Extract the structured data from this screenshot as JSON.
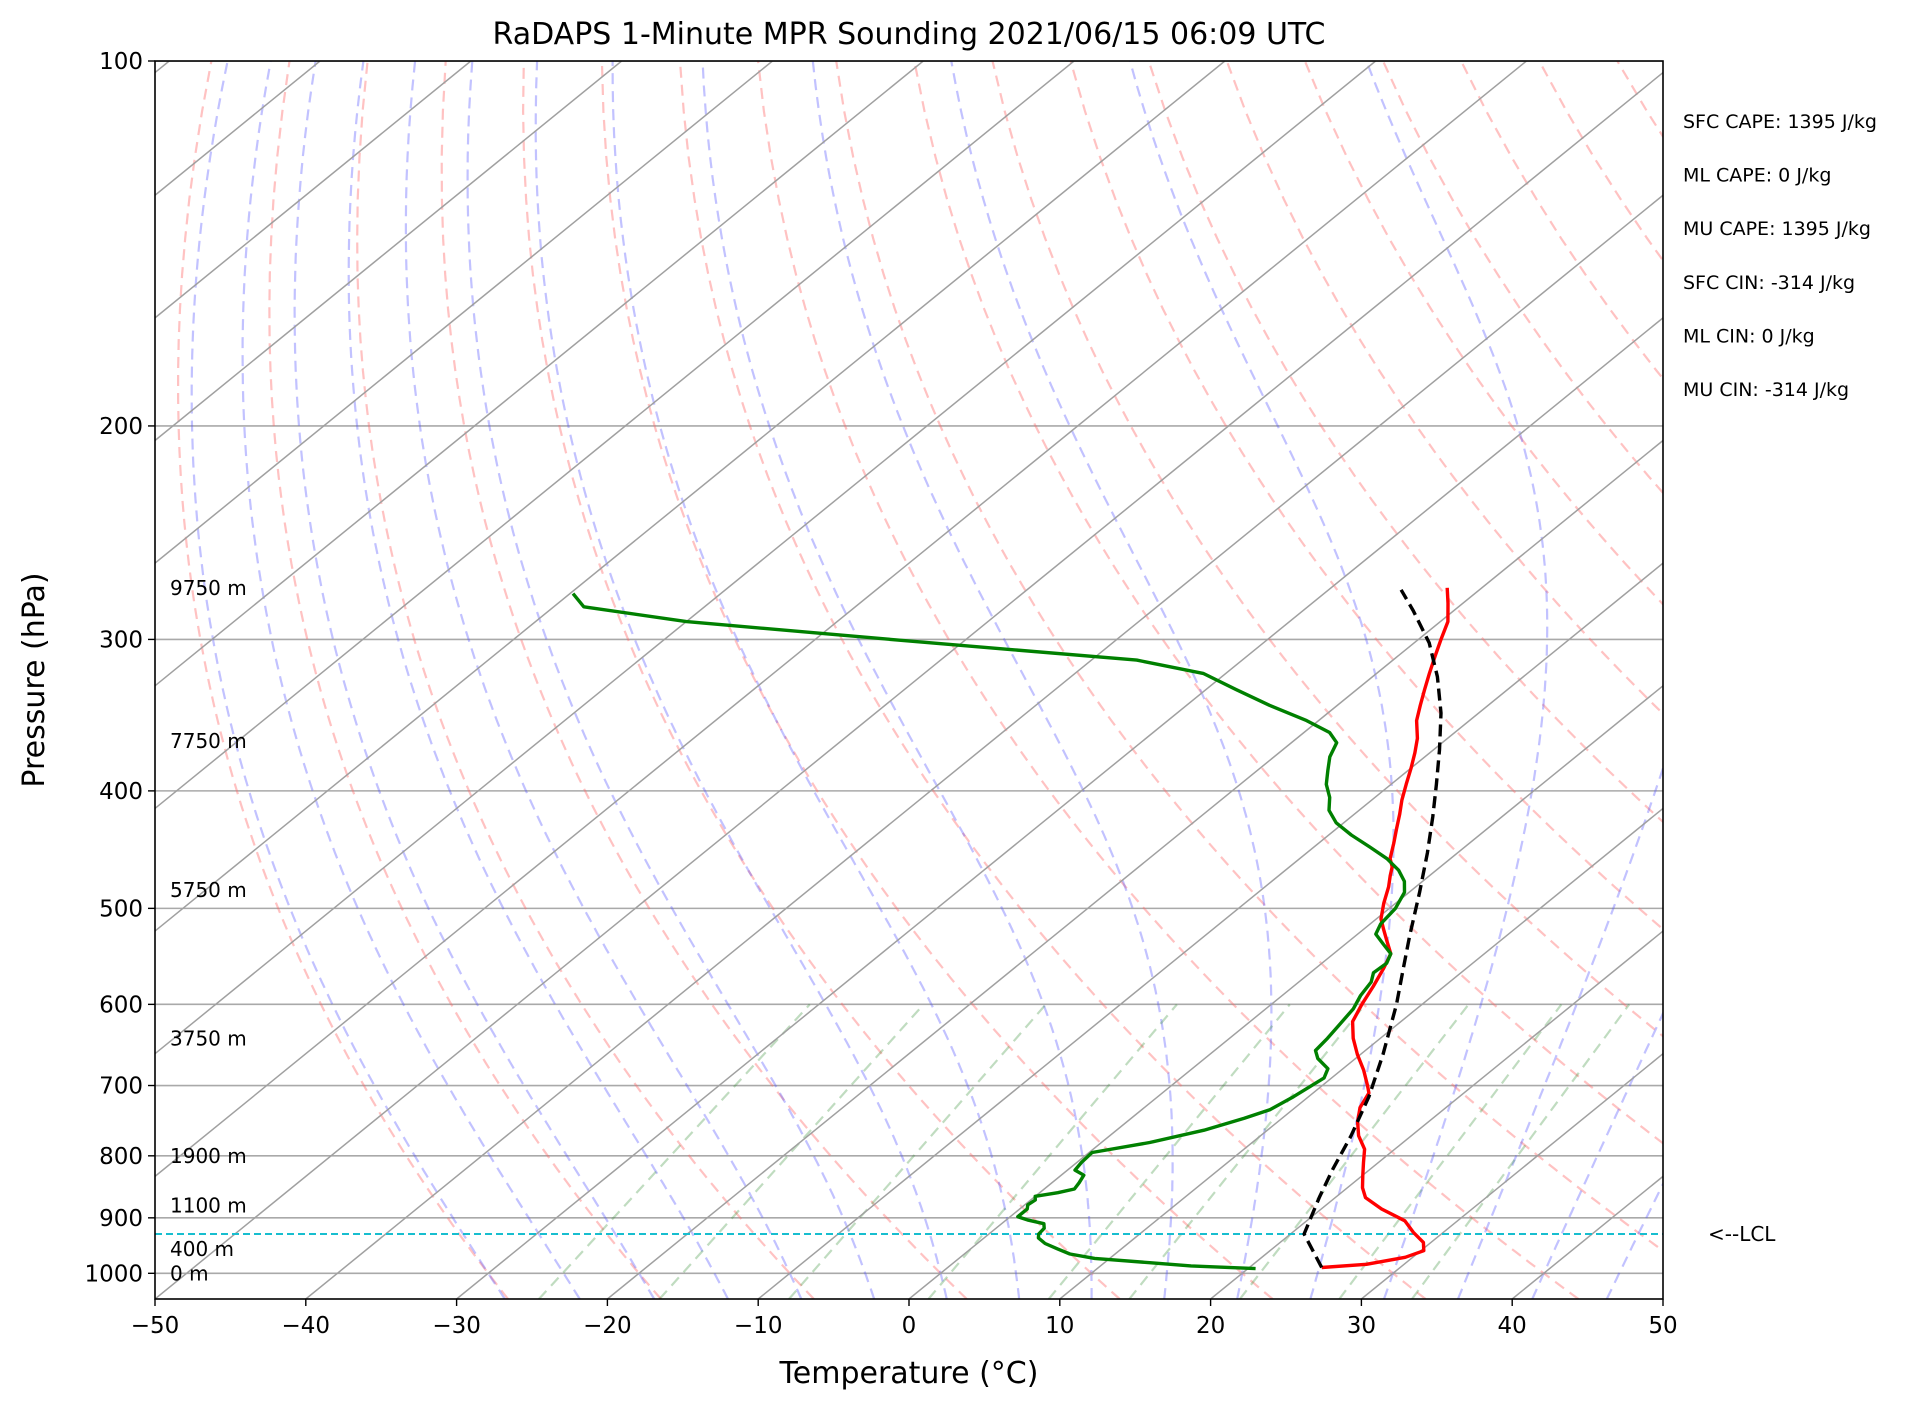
{
  "chart_data": {
    "type": "line",
    "subtype": "skew-T log-p sounding",
    "title": "RaDAPS 1-Minute MPR Sounding 2021/06/15 06:09 UTC",
    "xlabel": "Temperature (°C)",
    "ylabel": "Pressure (hPa)",
    "xlim": [
      -50,
      50
    ],
    "ylim": [
      1050,
      100
    ],
    "y_scale": "log",
    "grid": true,
    "x_ticks": [
      "−50",
      "−40",
      "−30",
      "−20",
      "−10",
      "0",
      "10",
      "20",
      "30",
      "40",
      "50"
    ],
    "y_ticks": [
      "100",
      "200",
      "300",
      "400",
      "500",
      "600",
      "700",
      "800",
      "900",
      "1000"
    ],
    "height_labels": [
      {
        "text": "0 m",
        "p": 1000
      },
      {
        "text": "400 m",
        "p": 955
      },
      {
        "text": "1100 m",
        "p": 879
      },
      {
        "text": "1900 m",
        "p": 800
      },
      {
        "text": "3750 m",
        "p": 640
      },
      {
        "text": "5750 m",
        "p": 483
      },
      {
        "text": "7750 m",
        "p": 364
      },
      {
        "text": "9750 m",
        "p": 272
      }
    ],
    "lcl": {
      "label": "<--LCL",
      "p": 928
    },
    "stats": [
      "SFC CAPE: 1395 J/kg",
      "ML CAPE: 0 J/kg",
      "MU CAPE: 1395 J/kg",
      "SFC CIN: -314 J/kg",
      "ML CIN: 0 J/kg",
      "MU CIN: -314 J/kg"
    ],
    "series": [
      {
        "role": "temperature",
        "color": "#ff0000",
        "points": [
          [
            24.8,
            989
          ],
          [
            27.5,
            983
          ],
          [
            29.5,
            970
          ],
          [
            30.2,
            958
          ],
          [
            29.5,
            943
          ],
          [
            28.0,
            925
          ],
          [
            26.5,
            905
          ],
          [
            24.0,
            885
          ],
          [
            22.0,
            866
          ],
          [
            21.0,
            850
          ],
          [
            20.0,
            830
          ],
          [
            19.0,
            810
          ],
          [
            18.0,
            790
          ],
          [
            16.5,
            770
          ],
          [
            15.3,
            750
          ],
          [
            14.3,
            730
          ],
          [
            13.7,
            710
          ],
          [
            13.0,
            700
          ],
          [
            11.5,
            680
          ],
          [
            9.8,
            660
          ],
          [
            8.2,
            640
          ],
          [
            6.8,
            620
          ],
          [
            6.0,
            600
          ],
          [
            5.3,
            580
          ],
          [
            4.5,
            560
          ],
          [
            3.8,
            545
          ],
          [
            2.5,
            532
          ],
          [
            1.3,
            520
          ],
          [
            0.3,
            510
          ],
          [
            -0.8,
            495
          ],
          [
            -1.8,
            480
          ],
          [
            -2.6,
            470
          ],
          [
            -3.2,
            462
          ],
          [
            -4.0,
            455
          ],
          [
            -5.0,
            442
          ],
          [
            -6.0,
            430
          ],
          [
            -7.0,
            418
          ],
          [
            -8.0,
            407
          ],
          [
            -9.0,
            395
          ],
          [
            -10.0,
            383
          ],
          [
            -11.0,
            372
          ],
          [
            -12.0,
            362
          ],
          [
            -13.5,
            350
          ],
          [
            -14.5,
            340
          ],
          [
            -15.5,
            330
          ],
          [
            -16.5,
            320
          ],
          [
            -17.5,
            310
          ],
          [
            -18.5,
            300
          ],
          [
            -19.5,
            290
          ],
          [
            -21.0,
            280
          ],
          [
            -22.3,
            272
          ]
        ]
      },
      {
        "role": "dewpoint",
        "color": "#008000",
        "points": [
          [
            20.5,
            991
          ],
          [
            16.0,
            986
          ],
          [
            13.0,
            980
          ],
          [
            9.0,
            972
          ],
          [
            7.0,
            964
          ],
          [
            5.8,
            955
          ],
          [
            4.5,
            945
          ],
          [
            3.6,
            935
          ],
          [
            3.3,
            928
          ],
          [
            3.2,
            918
          ],
          [
            2.8,
            910
          ],
          [
            1.5,
            904
          ],
          [
            0.5,
            898
          ],
          [
            0.5,
            885
          ],
          [
            0.2,
            878
          ],
          [
            0.3,
            870
          ],
          [
            0.0,
            864
          ],
          [
            1.2,
            858
          ],
          [
            2.0,
            852
          ],
          [
            1.8,
            842
          ],
          [
            1.5,
            830
          ],
          [
            0.5,
            822
          ],
          [
            0.3,
            810
          ],
          [
            0.2,
            795
          ],
          [
            3.2,
            780
          ],
          [
            5.8,
            762
          ],
          [
            7.5,
            745
          ],
          [
            8.5,
            733
          ],
          [
            9.0,
            715
          ],
          [
            9.5,
            690
          ],
          [
            9.0,
            678
          ],
          [
            7.5,
            665
          ],
          [
            6.7,
            655
          ],
          [
            6.5,
            640
          ],
          [
            6.2,
            625
          ],
          [
            5.8,
            605
          ],
          [
            5.2,
            590
          ],
          [
            4.8,
            575
          ],
          [
            4.2,
            565
          ],
          [
            4.3,
            555
          ],
          [
            3.8,
            545
          ],
          [
            2.5,
            535
          ],
          [
            1.2,
            525
          ],
          [
            0.7,
            515
          ],
          [
            0.4,
            500
          ],
          [
            -0.3,
            485
          ],
          [
            -1.2,
            475
          ],
          [
            -2.5,
            465
          ],
          [
            -4.2,
            455
          ],
          [
            -6.3,
            445
          ],
          [
            -8.5,
            435
          ],
          [
            -10.5,
            425
          ],
          [
            -12.0,
            415
          ],
          [
            -13.0,
            405
          ],
          [
            -14.3,
            395
          ],
          [
            -15.3,
            385
          ],
          [
            -16.3,
            375
          ],
          [
            -17.0,
            365
          ],
          [
            -18.3,
            358
          ],
          [
            -20.8,
            350
          ],
          [
            -24.5,
            340
          ],
          [
            -28.0,
            330
          ],
          [
            -31.5,
            320
          ],
          [
            -37.0,
            312
          ],
          [
            -46.0,
            306
          ],
          [
            -55.0,
            300
          ],
          [
            -70.0,
            290
          ],
          [
            -78.0,
            282
          ],
          [
            -79.8,
            275
          ]
        ]
      },
      {
        "role": "parcel",
        "color": "#000000",
        "points": [
          [
            24.8,
            989
          ],
          [
            20.9,
            928
          ],
          [
            18.9,
            865
          ],
          [
            17.5,
            820
          ],
          [
            16.0,
            770
          ],
          [
            14.0,
            715
          ],
          [
            11.5,
            660
          ],
          [
            8.3,
            600
          ],
          [
            5.8,
            560
          ],
          [
            3.6,
            527
          ],
          [
            0.7,
            485
          ],
          [
            -2.0,
            450
          ],
          [
            -4.6,
            420
          ],
          [
            -7.0,
            395
          ],
          [
            -9.6,
            370
          ],
          [
            -12.5,
            345
          ],
          [
            -15.7,
            322
          ],
          [
            -19.0,
            302
          ],
          [
            -22.7,
            284
          ],
          [
            -25.2,
            273
          ]
        ]
      }
    ],
    "reference_lines": {
      "isotherms": [
        -160,
        -150,
        -140,
        -130,
        -120,
        -110,
        -100,
        -90,
        -80,
        -70,
        -60,
        -50,
        -40,
        -30,
        -20,
        -10,
        0,
        10,
        20,
        30,
        40,
        50
      ],
      "dry_adiabats_theta_c": [
        -30,
        -20,
        -10,
        0,
        10,
        20,
        30,
        40,
        50,
        60,
        70,
        80,
        90,
        100,
        110,
        120,
        130,
        140,
        150,
        160,
        170,
        180,
        190,
        200
      ],
      "moist_adiabats_t1000_c": [
        -30,
        -25,
        -20,
        -15,
        -10,
        -5,
        0,
        5,
        10,
        15,
        20,
        25,
        30,
        35,
        40,
        45
      ],
      "mixing_ratios_g_kg": [
        0.5,
        1,
        2,
        4,
        7,
        10,
        16,
        24,
        32
      ]
    }
  }
}
